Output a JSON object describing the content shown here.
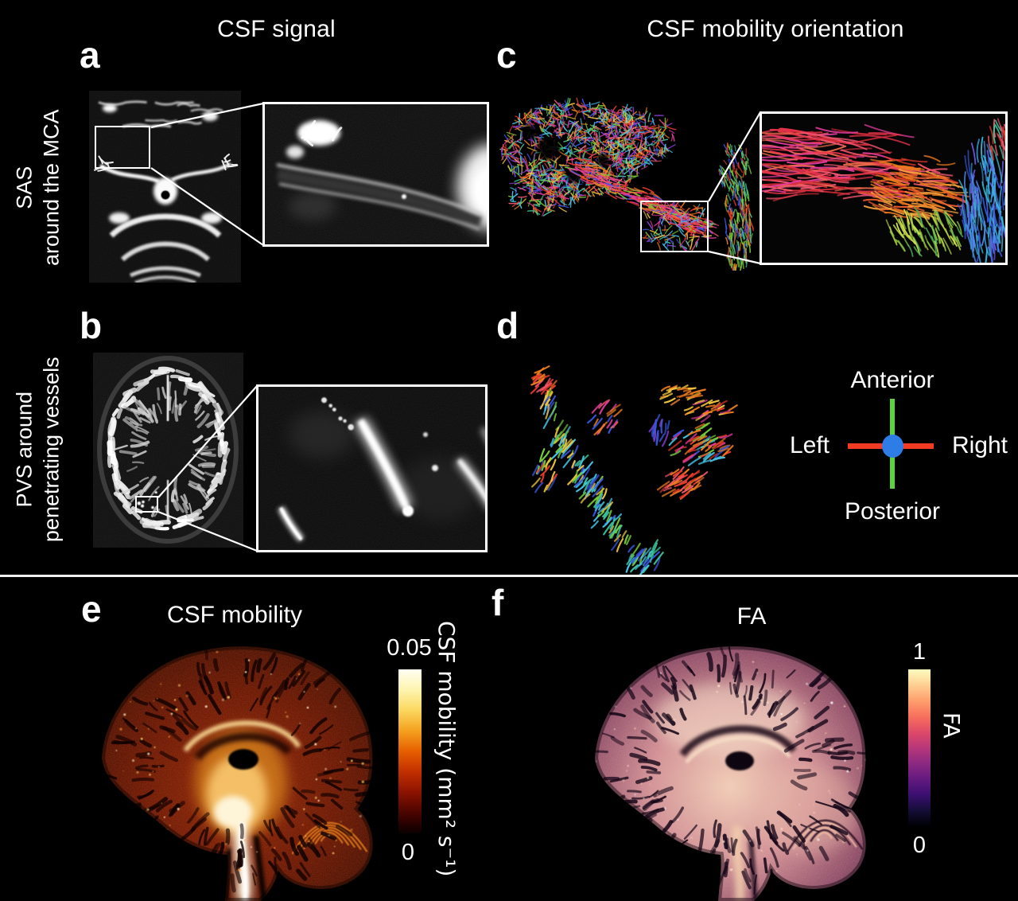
{
  "figure": {
    "background": "#000000",
    "divider_color": "#f0f0f0",
    "text_color": "#ffffff",
    "column_headers": [
      {
        "label": "CSF signal"
      },
      {
        "label": "CSF mobility orientation"
      }
    ],
    "row_headers": [
      {
        "line1": "SAS",
        "line2": "around the MCA"
      },
      {
        "line1": "PVS around",
        "line2": "penetrating vessels"
      }
    ],
    "panels": {
      "a": {
        "letter": "a"
      },
      "b": {
        "letter": "b"
      },
      "c": {
        "letter": "c"
      },
      "d": {
        "letter": "d"
      },
      "e": {
        "letter": "e",
        "title": "CSF mobility"
      },
      "f": {
        "letter": "f",
        "title": "FA"
      }
    },
    "compass": {
      "anterior": "Anterior",
      "posterior": "Posterior",
      "left": "Left",
      "right": "Right",
      "vertical_axis_color": "#5ad33e",
      "horizontal_axis_color": "#f23b22",
      "center_dot_color": "#2e7de6"
    },
    "colorbar_e": {
      "max": "0.05",
      "min": "0",
      "unit_label": "CSF mobility (mm² s⁻¹)",
      "gradient_bottom_to_top": [
        "#0a0000",
        "#4a0400",
        "#8c1300",
        "#c22f00",
        "#e65f00",
        "#f5a01e",
        "#fbd75f",
        "#fdf4ae",
        "#fffef2"
      ]
    },
    "colorbar_f": {
      "max": "1",
      "min": "0",
      "unit_label": "FA",
      "gradient_bottom_to_top": [
        "#000004",
        "#140e36",
        "#3b0f70",
        "#641a80",
        "#8c2981",
        "#b73779",
        "#de4968",
        "#f7705c",
        "#fe9f6d",
        "#fecf92",
        "#fcfdbf"
      ]
    },
    "fiber_colors": {
      "red": "#e83a28",
      "orange": "#f07c1e",
      "yellow": "#f2c83c",
      "green": "#78d038",
      "teal": "#3ec8a0",
      "cyan": "#45c6e8",
      "blue": "#3a56e0",
      "purple": "#8a3fd9",
      "magenta": "#e03a9c",
      "pink": "#f0566e"
    }
  }
}
